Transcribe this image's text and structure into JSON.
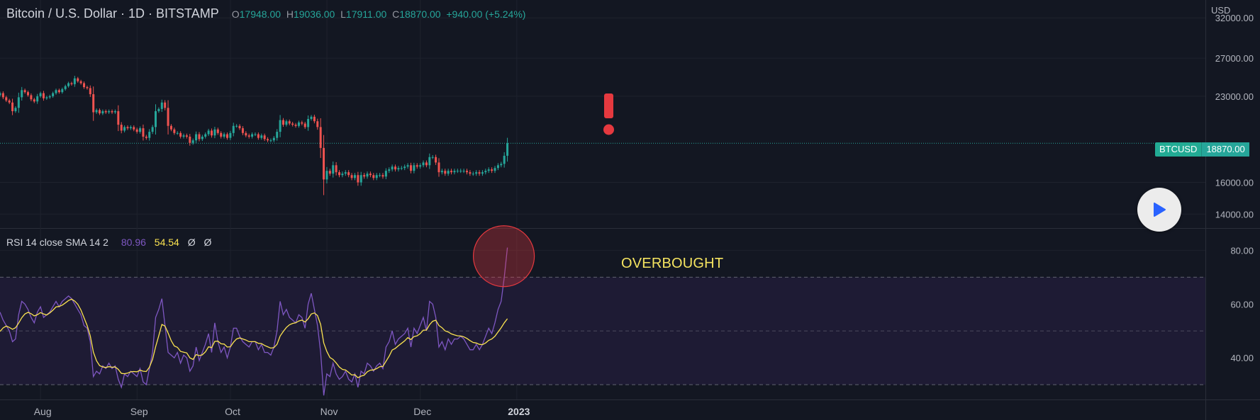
{
  "header": {
    "symbol": "Bitcoin / U.S. Dollar · 1D · BITSTAMP",
    "open_label": "O",
    "open": "17948.00",
    "high_label": "H",
    "high": "19036.00",
    "low_label": "L",
    "low": "17911.00",
    "close_label": "C",
    "close": "18870.00",
    "change": "+940.00 (+5.24%)"
  },
  "price_axis": {
    "currency": "USD",
    "last_tag": "BTCUSD",
    "last_price": "18870.00"
  },
  "rsi_legend": {
    "label": "RSI 14 close SMA 14 2",
    "rsi": "80.96",
    "sma": "54.54",
    "na1": "Ø",
    "na2": "Ø"
  },
  "annotations": {
    "overbought": "OVERBOUGHT",
    "exclamation": "!"
  },
  "colors": {
    "background": "#131722",
    "up": "#26a69a",
    "down": "#ef5350",
    "rsi": "#7e57c2",
    "sma": "#fbe350",
    "band": "#1e1b34",
    "alert": "#e5393f"
  },
  "icons": {
    "play": "play-icon"
  },
  "chart_data": [
    {
      "type": "candlestick",
      "title": "Bitcoin / U.S. Dollar · 1D · BITSTAMP",
      "x_ticks": [
        "Aug",
        "Sep",
        "Oct",
        "Nov",
        "Dec",
        "2023"
      ],
      "x_tick_days": [
        3,
        34,
        64,
        95,
        125,
        156
      ],
      "y_ticks": [
        "32000.00",
        "27000.00",
        "23000.00",
        "18870.00",
        "16000.00",
        "14000.00"
      ],
      "y_tick_values": [
        32000,
        27000,
        23000,
        18870,
        16000,
        14000
      ],
      "ylim": [
        13200,
        34500
      ],
      "last_price": 18870,
      "closes": [
        23300,
        22900,
        22600,
        22400,
        21600,
        21900,
        22900,
        23600,
        23400,
        23100,
        22700,
        22500,
        23000,
        23300,
        22800,
        22900,
        23000,
        23300,
        23600,
        23400,
        23700,
        24000,
        24300,
        24200,
        24800,
        24500,
        24300,
        23900,
        23800,
        23200,
        21500,
        21700,
        21400,
        21600,
        21500,
        21600,
        21500,
        21600,
        20400,
        19900,
        20200,
        20100,
        20200,
        20000,
        19800,
        20100,
        19400,
        19300,
        19800,
        20200,
        21600,
        21800,
        22400,
        21900,
        20300,
        20000,
        19700,
        19700,
        19400,
        19500,
        19400,
        18900,
        19100,
        19600,
        19200,
        19400,
        19600,
        19900,
        19500,
        20000,
        19700,
        19400,
        19600,
        19300,
        19700,
        20300,
        20300,
        20100,
        19700,
        19500,
        19400,
        19600,
        19600,
        19300,
        19500,
        19200,
        19100,
        19100,
        19300,
        19800,
        20800,
        20400,
        20700,
        20500,
        20400,
        20300,
        20600,
        20500,
        20200,
        20900,
        21100,
        20700,
        20200,
        18500,
        16200,
        16800,
        16600,
        17200,
        16700,
        16500,
        16600,
        16700,
        16500,
        16300,
        16500,
        16000,
        16500,
        16400,
        16600,
        16500,
        16300,
        16500,
        16500,
        16400,
        16800,
        16900,
        17100,
        16900,
        17000,
        17000,
        17100,
        17200,
        16800,
        17200,
        17100,
        17200,
        17400,
        17200,
        17800,
        17800,
        17400,
        16700,
        16800,
        16600,
        16800,
        16700,
        16800,
        16800,
        16800,
        16800,
        16700,
        16600,
        16600,
        16700,
        16600,
        16700,
        16800,
        16900,
        16800,
        17000,
        17200,
        17300,
        17900,
        18870
      ]
    },
    {
      "type": "line",
      "title": "RSI 14 close SMA 14 2",
      "y_ticks": [
        "80.00",
        "60.00",
        "40.00"
      ],
      "y_tick_values": [
        80,
        60,
        40
      ],
      "ylim": [
        24.5,
        88
      ],
      "bands": {
        "upper": 70,
        "middle": 50,
        "lower": 30
      },
      "series": [
        {
          "name": "RSI",
          "values": [
            57,
            54,
            52,
            50,
            46,
            47,
            56,
            61,
            60,
            58,
            55,
            53,
            57,
            59,
            55,
            56,
            57,
            59,
            61,
            59,
            61,
            62,
            63,
            62,
            60,
            58,
            56,
            52,
            51,
            46,
            33,
            35,
            34,
            37,
            36,
            38,
            36,
            37,
            32,
            29,
            34,
            33,
            35,
            34,
            33,
            36,
            31,
            30,
            36,
            42,
            55,
            58,
            62,
            52,
            42,
            41,
            40,
            42,
            38,
            41,
            40,
            35,
            37,
            44,
            39,
            42,
            45,
            49,
            42,
            53,
            46,
            42,
            44,
            40,
            44,
            51,
            51,
            48,
            46,
            45,
            44,
            46,
            46,
            43,
            45,
            42,
            42,
            41,
            44,
            50,
            61,
            56,
            58,
            55,
            54,
            53,
            56,
            55,
            51,
            60,
            64,
            58,
            52,
            42,
            26,
            34,
            33,
            38,
            34,
            32,
            33,
            35,
            32,
            31,
            34,
            29,
            35,
            34,
            38,
            37,
            35,
            37,
            38,
            36,
            44,
            46,
            50,
            45,
            47,
            48,
            49,
            51,
            44,
            51,
            49,
            52,
            55,
            50,
            61,
            60,
            55,
            44,
            46,
            43,
            47,
            45,
            47,
            47,
            48,
            47,
            45,
            43,
            43,
            45,
            43,
            45,
            48,
            51,
            49,
            53,
            58,
            61,
            70,
            81
          ]
        },
        {
          "name": "SMA",
          "values": [
            49.8,
            51.1,
            51.8,
            51.3,
            50.6,
            51.2,
            52.9,
            54.9,
            56.3,
            56.9,
            56.4,
            55.6,
            56.0,
            56.8,
            56.3,
            55.9,
            56.7,
            57.7,
            58.9,
            59.1,
            59.6,
            60.4,
            61.3,
            61.8,
            61.1,
            59.9,
            57.8,
            54.9,
            52.0,
            48.2,
            42.1,
            38.9,
            37.1,
            36.6,
            36.4,
            36.7,
            36.5,
            36.6,
            35.7,
            34.2,
            34.1,
            34.3,
            34.8,
            34.9,
            34.8,
            35.4,
            35.0,
            34.9,
            36.5,
            39.4,
            44.1,
            48.2,
            52.4,
            51.8,
            49.2,
            46.4,
            44.4,
            43.9,
            42.4,
            42.1,
            41.8,
            40.0,
            39.4,
            41.2,
            40.8,
            41.1,
            42.2,
            44.1,
            43.8,
            46.1,
            46.2,
            45.2,
            45.1,
            44.0,
            44.1,
            45.8,
            47.0,
            47.4,
            47.0,
            46.6,
            46.0,
            46.0,
            46.0,
            45.4,
            45.3,
            44.6,
            44.1,
            43.6,
            43.8,
            45.0,
            48.1,
            49.8,
            51.3,
            52.3,
            52.8,
            53.0,
            53.7,
            54.0,
            53.3,
            54.5,
            56.3,
            56.7,
            55.7,
            52.4,
            45.5,
            42.4,
            40.1,
            39.4,
            38.1,
            36.6,
            35.7,
            35.5,
            34.6,
            33.6,
            33.7,
            32.6,
            33.2,
            33.5,
            34.8,
            35.4,
            35.5,
            36.0,
            36.7,
            36.8,
            38.7,
            40.6,
            42.9,
            43.5,
            44.5,
            45.4,
            46.3,
            47.5,
            46.8,
            47.9,
            48.2,
            49.0,
            50.3,
            50.3,
            52.3,
            53.6,
            54.0,
            52.0,
            51.2,
            50.0,
            49.6,
            48.9,
            48.5,
            48.2,
            48.1,
            47.8,
            47.2,
            46.4,
            45.7,
            45.5,
            45.0,
            44.9,
            45.5,
            46.5,
            47.0,
            48.0,
            49.6,
            51.2,
            53.0,
            54.54
          ]
        }
      ],
      "markers": [
        {
          "shape": "circle",
          "value": 80.96,
          "index": 163
        }
      ]
    }
  ]
}
